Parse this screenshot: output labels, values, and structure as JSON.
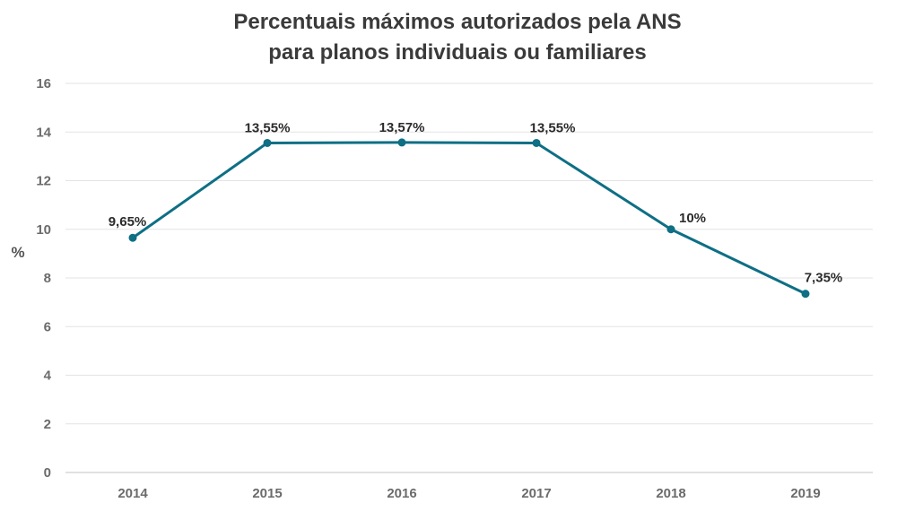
{
  "chart_data": {
    "type": "line",
    "title": [
      "Percentuais máximos autorizados pela ANS",
      "para planos individuais ou familiares"
    ],
    "xlabel": "",
    "ylabel": "%",
    "categories": [
      "2014",
      "2015",
      "2016",
      "2017",
      "2018",
      "2019"
    ],
    "series": [
      {
        "values": [
          9.65,
          13.55,
          13.57,
          13.55,
          10,
          7.35
        ],
        "labels": [
          "9,65%",
          "13,55%",
          "13,57%",
          "13,55%",
          "10%",
          "7,35%"
        ]
      }
    ],
    "ylim": [
      0,
      16
    ],
    "yticks": [
      "0",
      "2",
      "4",
      "6",
      "8",
      "10",
      "12",
      "14",
      "16"
    ],
    "grid": true,
    "legend": "none",
    "colors": {
      "line": "#0e6f85",
      "grid": "#e3e3e3"
    }
  }
}
